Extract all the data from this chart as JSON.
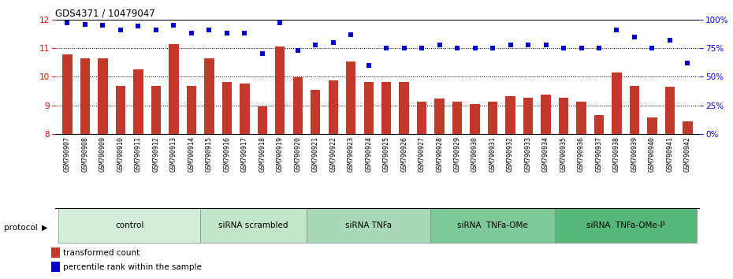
{
  "title": "GDS4371 / 10479047",
  "samples": [
    "GSM790907",
    "GSM790908",
    "GSM790909",
    "GSM790910",
    "GSM790911",
    "GSM790912",
    "GSM790913",
    "GSM790914",
    "GSM790915",
    "GSM790916",
    "GSM790917",
    "GSM790918",
    "GSM790919",
    "GSM790920",
    "GSM790921",
    "GSM790922",
    "GSM790923",
    "GSM790924",
    "GSM790925",
    "GSM790926",
    "GSM790927",
    "GSM790928",
    "GSM790929",
    "GSM790930",
    "GSM790931",
    "GSM790932",
    "GSM790933",
    "GSM790934",
    "GSM790935",
    "GSM790936",
    "GSM790937",
    "GSM790938",
    "GSM790939",
    "GSM790940",
    "GSM790941",
    "GSM790942"
  ],
  "bar_values": [
    10.78,
    10.63,
    10.63,
    9.67,
    10.25,
    9.67,
    11.15,
    9.67,
    10.65,
    9.83,
    9.75,
    8.97,
    11.07,
    9.97,
    9.53,
    9.87,
    10.52,
    9.83,
    9.83,
    9.83,
    9.13,
    9.25,
    9.13,
    9.05,
    9.13,
    9.32,
    9.27,
    9.38,
    9.27,
    9.13,
    8.65,
    10.15,
    9.67,
    8.57,
    9.65,
    8.45
  ],
  "dot_values": [
    97,
    96,
    95,
    91,
    94,
    91,
    95,
    88,
    91,
    88,
    88,
    70,
    97,
    73,
    78,
    80,
    87,
    60,
    75,
    75,
    75,
    78,
    75,
    75,
    75,
    78,
    78,
    78,
    75,
    75,
    75,
    91,
    85,
    75,
    82,
    62
  ],
  "groups": [
    {
      "label": "control",
      "start": 0,
      "end": 8,
      "color": "#d4edda"
    },
    {
      "label": "siRNA scrambled",
      "start": 8,
      "end": 14,
      "color": "#c3e6cb"
    },
    {
      "label": "siRNA TNFa",
      "start": 14,
      "end": 21,
      "color": "#a8d8b8"
    },
    {
      "label": "siRNA  TNFa-OMe",
      "start": 21,
      "end": 28,
      "color": "#7ec89a"
    },
    {
      "label": "siRNA  TNFa-OMe-P",
      "start": 28,
      "end": 36,
      "color": "#55b87a"
    }
  ],
  "bar_color": "#c0392b",
  "dot_color": "#0000cc",
  "ylim_left": [
    8,
    12
  ],
  "ylim_right": [
    0,
    100
  ],
  "yticks_left": [
    8,
    9,
    10,
    11,
    12
  ],
  "yticks_right": [
    0,
    25,
    50,
    75,
    100
  ],
  "ytick_right_labels": [
    "0%",
    "25%",
    "50%",
    "75%",
    "100%"
  ],
  "legend_bar": "transformed count",
  "legend_dot": "percentile rank within the sample",
  "protocol_label": "protocol"
}
